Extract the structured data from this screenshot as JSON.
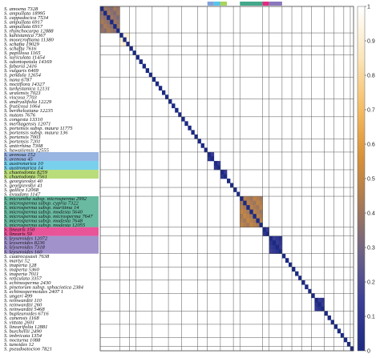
{
  "chart_data": {
    "type": "heatmap",
    "title": "",
    "taxa": [
      "S. amoena 7328",
      "S. ampullata 18995",
      "S. cappadocica 7534",
      "S. ampullata 6917",
      "S. ampullata 6917",
      "S. rhynchocarpa 12888",
      "S. kuhistanica 7367",
      "S. moorcroftiana 11380",
      "S. schafta 19029",
      "S. schafta 7616",
      "S. papillosa 1165",
      "S. suriculata 11454",
      "S. odontopetala 14169",
      "S. fabaria 2416",
      "S. vulgaris 6469",
      "S. pendula 12654",
      "S. nana 6787",
      "S. noctiflora 14327",
      "S. turkestanica 12131",
      "S. uralensis 7023",
      "S. viscosa 7703",
      "S. andryalifolia 12229",
      "S. fruticosa 1064",
      "S. bertheloziana 12235",
      "S. nutans 7676",
      "S. congesta 13310",
      "S. meritagensis 12071",
      "S. portensis subsp. maura 11775",
      "S. portensis subsp. maura 136",
      "S. portensis 7003",
      "S. portensis 7201",
      "S. antirrhina 7308",
      "S. hawaiiensis 12555",
      "S. arenosa 152",
      "S. arenosa 45",
      "S. austronarica 10",
      "S. austronarica 14",
      "S. chaetodonta 8259",
      "S. chaetodonta 7561",
      "S. georgievskyi 40",
      "S. georgievskyi 41",
      "S. gallica 12068",
      "S. exsudans 1147",
      "S. micrantha subsp. microsperma 2992",
      "S. microsperma subsp. cypria 7322",
      "S. microsperma subsp. maritima 14",
      "S. microsperma subsp. modesta 5640",
      "S. microsperma subsp. microsperma 7647",
      "S. microsperma subsp. modesta 7648",
      "S. microsperma subsp. modesta 12055",
      "S. linearis 150",
      "S. linearis 50",
      "S. leyseroides 12072",
      "S. leyseroides 8236",
      "S. leyseroides 7318",
      "S. leyseroides 160",
      "S. cuatrecasasii 7638",
      "S. martyi 52",
      "S. inaperta 128",
      "S. inaperta 5360",
      "S. inaperta 7011",
      "S. reticulata 3357",
      "S. echinosperma 2430",
      "S. pinetorum subsp. sphaciotica 2384",
      "S. echinospermoides 2407 1",
      "S. ungeri 499",
      "S. reinwardtii 110",
      "S. reinwardtii 260",
      "S. reinwardtii 5468",
      "S. bupleuroides 6716",
      "S. canensis 1168",
      "S. vittata 2601",
      "S. linearifolia 12881",
      "S. burchellii 2490",
      "S. imbricata 1354",
      "S. nocturna 1088",
      "S. tunoides 12",
      "S. pseudoatocion 7821"
    ],
    "blocks": [
      {
        "start": 0,
        "end": 5,
        "value": 0.62
      },
      {
        "start": 6,
        "end": 8,
        "value": 0.08
      },
      {
        "start": 33,
        "end": 34,
        "value": 0.9
      },
      {
        "start": 35,
        "end": 36,
        "value": 0.9
      },
      {
        "start": 37,
        "end": 38,
        "value": 0.9
      },
      {
        "start": 43,
        "end": 49,
        "value": 0.55
      },
      {
        "start": 50,
        "end": 51,
        "value": 0.9
      },
      {
        "start": 52,
        "end": 55,
        "value": 0.9
      },
      {
        "start": 66,
        "end": 68,
        "value": 0.9
      }
    ],
    "clusters": [
      {
        "start": 33,
        "end": 34,
        "color": "#7fa2db"
      },
      {
        "start": 35,
        "end": 36,
        "color": "#57c4e8"
      },
      {
        "start": 37,
        "end": 38,
        "color": "#a9d45a"
      },
      {
        "start": 43,
        "end": 49,
        "color": "#43a98a"
      },
      {
        "start": 50,
        "end": 51,
        "color": "#e3297f"
      },
      {
        "start": 52,
        "end": 55,
        "color": "#8977be"
      }
    ],
    "grid_lines_after": [
      5,
      8,
      10,
      15,
      20,
      24,
      29,
      32,
      36,
      40,
      42,
      49,
      51,
      55,
      58,
      61,
      64,
      68,
      71,
      74,
      76
    ],
    "diagonal_value": 1.0,
    "colorbar": {
      "ticks": [
        0,
        0.1,
        0.2,
        0.3,
        0.4,
        0.5,
        0.6,
        0.7,
        0.8,
        0.9,
        1
      ],
      "stops": [
        "#ffffff",
        "#fbe7bd",
        "#f7c06a",
        "#dc9335",
        "#a87a55",
        "#6c6386",
        "#3b3e96",
        "#1c2a82"
      ]
    }
  }
}
